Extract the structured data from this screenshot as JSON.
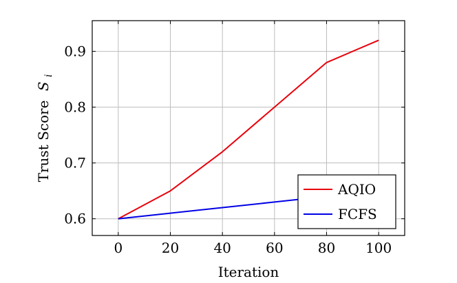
{
  "chart_data": {
    "type": "line",
    "xlabel": "Iteration",
    "ylabel": "Trust Score",
    "ylabel_symbol": "S",
    "ylabel_subscript": "i",
    "xlim": [
      -10,
      110
    ],
    "ylim": [
      0.57,
      0.955
    ],
    "xticks": [
      0,
      20,
      40,
      60,
      80,
      100
    ],
    "yticks": [
      0.6,
      0.7,
      0.8,
      0.9
    ],
    "xtick_labels": [
      "0",
      "20",
      "40",
      "60",
      "80",
      "100"
    ],
    "ytick_labels": [
      "0.6",
      "0.7",
      "0.8",
      "0.9"
    ],
    "grid": true,
    "legend_position": "bottom-right",
    "series": [
      {
        "name": "AQIO",
        "color": "#e8000b",
        "x": [
          0,
          20,
          40,
          60,
          80,
          100
        ],
        "y": [
          0.6,
          0.65,
          0.72,
          0.8,
          0.88,
          0.92
        ]
      },
      {
        "name": "FCFS",
        "color": "#0000e6",
        "x": [
          0,
          20,
          40,
          60,
          80,
          100
        ],
        "y": [
          0.6,
          0.61,
          0.62,
          0.63,
          0.64,
          0.65
        ]
      }
    ]
  }
}
